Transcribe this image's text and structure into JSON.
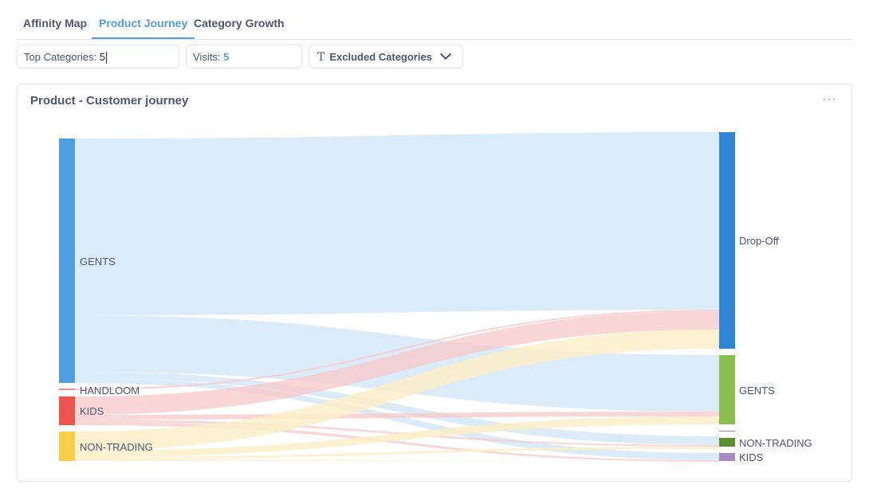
{
  "tabs": {
    "affinity_map": "Affinity Map",
    "product_journey": "Product Journey",
    "category_growth": "Category Growth"
  },
  "filters": {
    "top_categories": {
      "label": "Top Categories:",
      "value": "5"
    },
    "visits": {
      "label": "Visits:",
      "value": "5"
    },
    "excluded": {
      "label": "Excluded Categories"
    }
  },
  "card": {
    "title": "Product - Customer journey",
    "menu_icon": "ellipsis-icon"
  },
  "colors": {
    "accent": "#509ee3",
    "gents_source": "#509ee3",
    "kids_source": "#ef5350",
    "non_trading_source": "#f9cf48",
    "handloom_source": "#ef8c8c",
    "dropoff_target": "#2f84d6",
    "gents_target": "#88bf4d",
    "non_trading_target": "#5a8f2f",
    "kids_target": "#a989c5"
  },
  "sankey": {
    "sources": [
      {
        "id": "GENTS",
        "label": "GENTS"
      },
      {
        "id": "HANDLOOM",
        "label": "HANDLOOM"
      },
      {
        "id": "KIDS",
        "label": "KIDS"
      },
      {
        "id": "NON-TRADING",
        "label": "NON-TRADING"
      }
    ],
    "targets": [
      {
        "id": "Drop-Off",
        "label": "Drop-Off"
      },
      {
        "id": "GENTS",
        "label": "GENTS"
      },
      {
        "id": "NON-TRADING",
        "label": "NON-TRADING"
      },
      {
        "id": "KIDS",
        "label": "KIDS"
      }
    ]
  }
}
